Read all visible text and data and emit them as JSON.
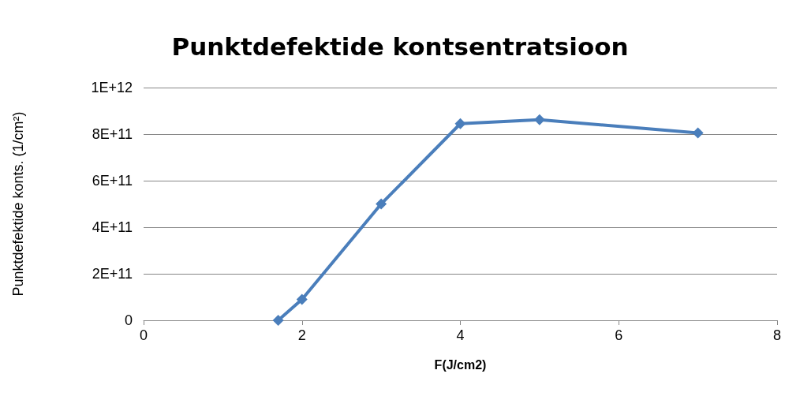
{
  "chart_data": {
    "type": "line",
    "title": "Punktdefektide kontsentratsioon",
    "xlabel": "F(J/cm2)",
    "ylabel": "Punktdefektide konts. (1/cm²)",
    "x": [
      1.7,
      2,
      3,
      4,
      5,
      7
    ],
    "series": [
      {
        "color": "#4a7ebb",
        "values": [
          0,
          90000000000,
          500000000000,
          845000000000,
          862000000000,
          805000000000
        ]
      }
    ],
    "xlim": [
      0,
      8
    ],
    "xticks": [
      0,
      2,
      4,
      6,
      8
    ],
    "ylim": [
      0,
      1000000000000
    ],
    "yticks": [
      0,
      {
        "value": 200000000000,
        "label": "2E+11"
      },
      {
        "value": 400000000000,
        "label": "4E+11"
      },
      {
        "value": 600000000000,
        "label": "6E+11"
      },
      {
        "value": 800000000000,
        "label": "8E+11"
      },
      {
        "value": 1000000000000,
        "label": "1E+12"
      }
    ],
    "grid": "y",
    "marker": "diamond",
    "line_style": "solid"
  }
}
